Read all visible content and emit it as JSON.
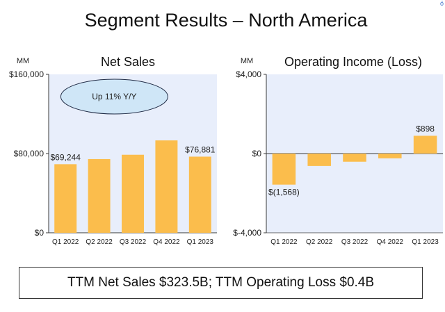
{
  "slide": {
    "title": "Segment Results – North America",
    "summary": "TTM Net Sales $323.5B; TTM Operating Loss $0.4B"
  },
  "colors": {
    "bar": "#fbbd4c",
    "plot_background": "#e8eefb",
    "callout_fill": "#cfe6f7",
    "callout_stroke": "#1f2a44",
    "axis": "#3a3a3a"
  },
  "chart_data": [
    {
      "type": "bar",
      "title": "Net Sales",
      "unit": "MM",
      "categories": [
        "Q1 2022",
        "Q2 2022",
        "Q3 2022",
        "Q4 2022",
        "Q1 2023"
      ],
      "values": [
        69244,
        74400,
        78800,
        93300,
        76881
      ],
      "data_labels": [
        "$69,244",
        "",
        "",
        "",
        "$76,881"
      ],
      "ylim": [
        0,
        160000
      ],
      "yticks": [
        0,
        80000,
        160000
      ],
      "ytick_labels": [
        "$0",
        "$80,000",
        "$160,000"
      ],
      "annotation": "Up 11% Y/Y",
      "grid": false,
      "legend": "none"
    },
    {
      "type": "bar",
      "title": "Operating Income (Loss)",
      "unit": "MM",
      "categories": [
        "Q1 2022",
        "Q2 2022",
        "Q3 2022",
        "Q4 2022",
        "Q1 2023"
      ],
      "values": [
        -1568,
        -627,
        -412,
        -240,
        898
      ],
      "data_labels": [
        "$(1,568)",
        "",
        "",
        "",
        "$898"
      ],
      "ylim": [
        -4000,
        4000
      ],
      "yticks": [
        -4000,
        0,
        4000
      ],
      "ytick_labels": [
        "$-4,000",
        "$0",
        "$4,000"
      ],
      "grid": false,
      "legend": "none"
    }
  ]
}
